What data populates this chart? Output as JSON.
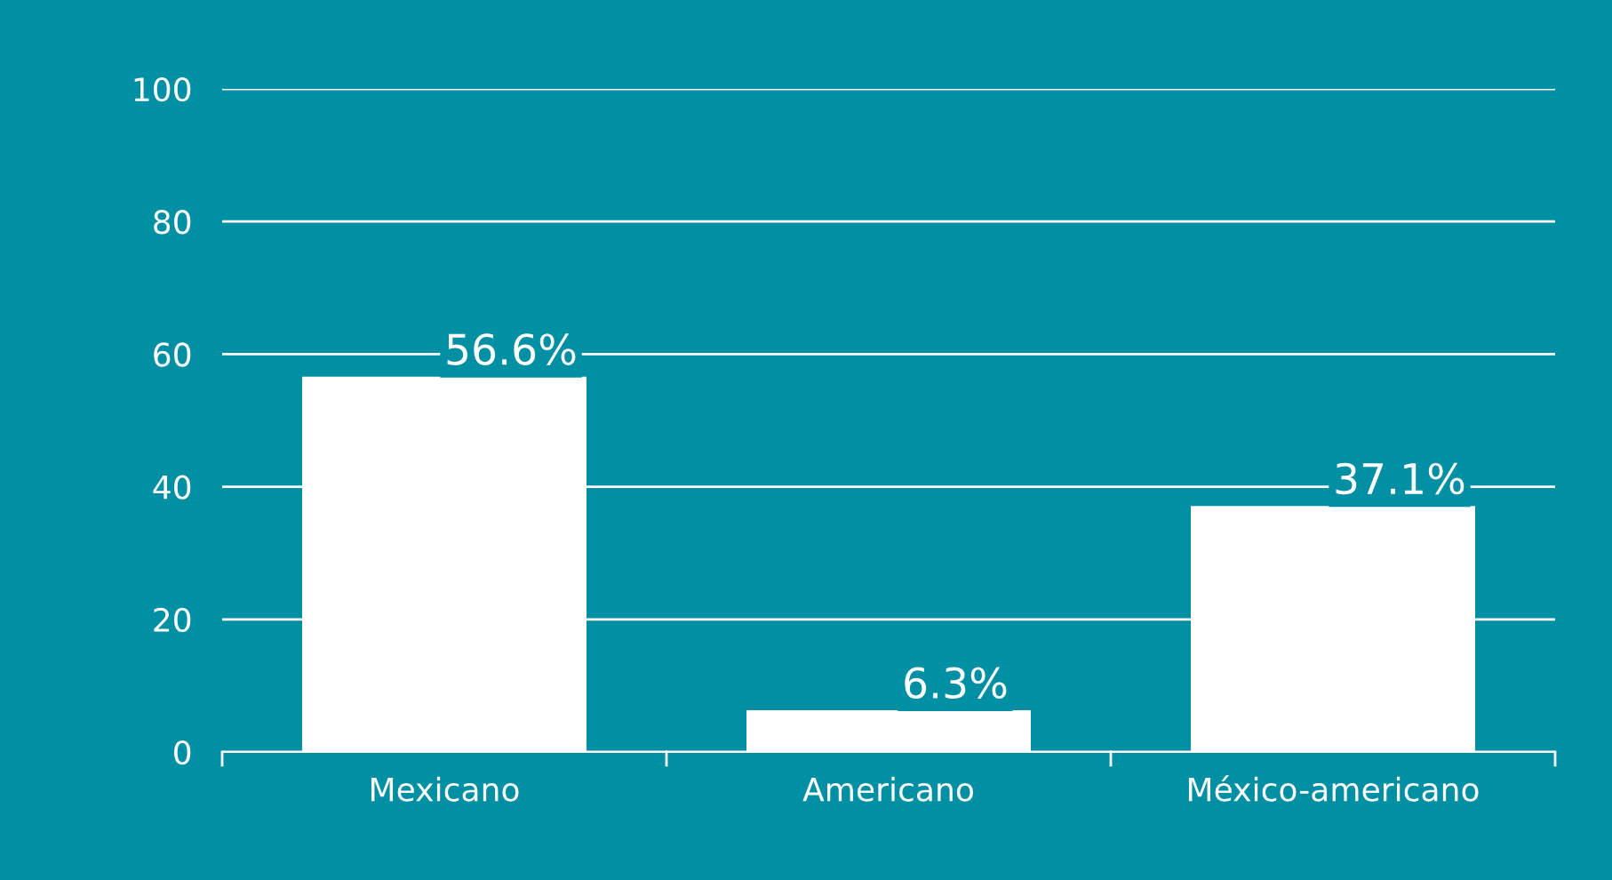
{
  "chart_data": {
    "type": "bar",
    "categories": [
      "Mexicano",
      "Americano",
      "México-americano"
    ],
    "values": [
      56.6,
      6.3,
      37.1
    ],
    "color": "#ffffff",
    "value_labels": [
      "56.6%",
      "6.3%",
      "37.1%"
    ],
    "ylim": [
      0,
      100
    ],
    "yticks": [
      0,
      20,
      40,
      60,
      80,
      100
    ],
    "grid": "y"
  }
}
